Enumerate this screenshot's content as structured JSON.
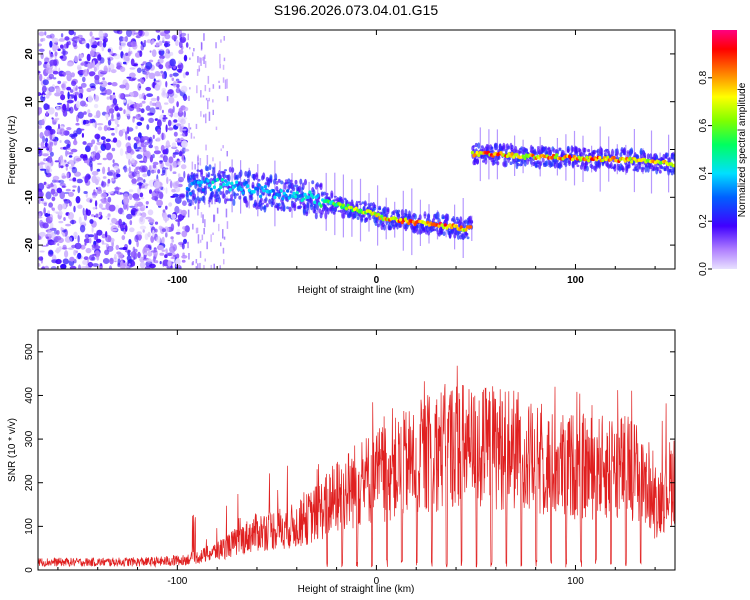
{
  "title": "S196.2026.073.04.01.G15",
  "colors": {
    "snr_line": "#e02020",
    "spectrogram_low": "#5000e0",
    "spectrogram_high": "#ff0000"
  },
  "chart_data": [
    {
      "type": "heatmap",
      "title": "S196.2026.073.04.01.G15",
      "xlabel": "Height of straight line (km)",
      "ylabel": "Frequency (Hz)",
      "xlim": [
        -170,
        150
      ],
      "ylim": [
        -25,
        25
      ],
      "x_ticks": [
        -100,
        0,
        100
      ],
      "y_ticks": [
        -20,
        -10,
        0,
        10,
        20
      ],
      "colorbar": {
        "label": "Normalized spectral amplitude",
        "range": [
          0,
          1
        ],
        "ticks": [
          "0.0",
          "0.2",
          "0.4",
          "0.6",
          "0.8"
        ],
        "colormap": "rainbow"
      },
      "ridge": [
        {
          "x": -93,
          "freq": -8,
          "amp": 0.35
        },
        {
          "x": -85,
          "freq": -7,
          "amp": 0.45
        },
        {
          "x": -75,
          "freq": -7.5,
          "amp": 0.45
        },
        {
          "x": -65,
          "freq": -8,
          "amp": 0.4
        },
        {
          "x": -55,
          "freq": -9,
          "amp": 0.4
        },
        {
          "x": -45,
          "freq": -9.5,
          "amp": 0.4
        },
        {
          "x": -35,
          "freq": -10,
          "amp": 0.45
        },
        {
          "x": -25,
          "freq": -11,
          "amp": 0.55
        },
        {
          "x": -15,
          "freq": -12,
          "amp": 0.7
        },
        {
          "x": -5,
          "freq": -13,
          "amp": 0.75
        },
        {
          "x": 5,
          "freq": -14.5,
          "amp": 0.85
        },
        {
          "x": 15,
          "freq": -15,
          "amp": 0.9
        },
        {
          "x": 25,
          "freq": -15.5,
          "amp": 0.9
        },
        {
          "x": 35,
          "freq": -16,
          "amp": 0.95
        },
        {
          "x": 45,
          "freq": -16.5,
          "amp": 0.85
        },
        {
          "x": 48,
          "freq": -1,
          "amp": 0.9
        },
        {
          "x": 60,
          "freq": -1,
          "amp": 0.9
        },
        {
          "x": 75,
          "freq": -1.5,
          "amp": 0.85
        },
        {
          "x": 90,
          "freq": -1.5,
          "amp": 0.85
        },
        {
          "x": 105,
          "freq": -2,
          "amp": 0.9
        },
        {
          "x": 120,
          "freq": -2,
          "amp": 0.9
        },
        {
          "x": 135,
          "freq": -2.5,
          "amp": 0.85
        },
        {
          "x": 148,
          "freq": -3,
          "amp": 0.8
        }
      ]
    },
    {
      "type": "line",
      "xlabel": "Height of straight line (km)",
      "ylabel": "SNR (10 * v/v)",
      "xlim": [
        -170,
        150
      ],
      "ylim": [
        0,
        550
      ],
      "x_ticks": [
        -100,
        0,
        100
      ],
      "y_ticks": [
        0,
        100,
        200,
        300,
        400,
        500
      ],
      "envelope": {
        "x": [
          -170,
          -140,
          -110,
          -100,
          -90,
          -80,
          -70,
          -60,
          -50,
          -40,
          -30,
          -20,
          -10,
          0,
          10,
          20,
          30,
          40,
          50,
          60,
          70,
          80,
          90,
          100,
          110,
          120,
          130,
          140,
          150
        ],
        "y": [
          20,
          20,
          22,
          28,
          40,
          60,
          90,
          120,
          130,
          140,
          180,
          230,
          270,
          300,
          320,
          350,
          380,
          400,
          380,
          390,
          380,
          340,
          330,
          330,
          320,
          330,
          320,
          200,
          300
        ]
      }
    }
  ]
}
